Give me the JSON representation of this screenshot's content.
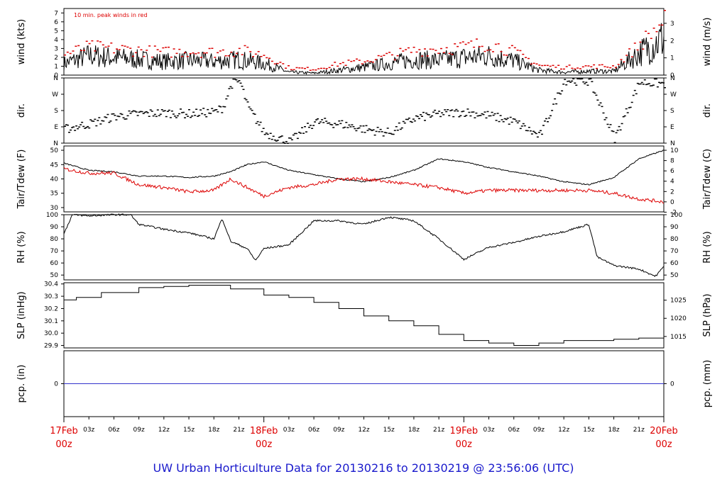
{
  "footer": {
    "title": "UW Urban Horticulture Data for 20130216  to  20130219 @ 23:56:06  (UTC)",
    "title_color": "#1a1acc"
  },
  "colors": {
    "series": "#000000",
    "red": "#dd0000",
    "precip": "#3333cc",
    "date": "#dd0000"
  },
  "chart_data": [
    {
      "type": "line",
      "id": "wind",
      "note": "10 min. peak winds in red",
      "ylabel_left": "wind (kts)",
      "ylabel_right": "wind (m/s)",
      "left_ticks": [
        0,
        1,
        2,
        3,
        4,
        5,
        6,
        7
      ],
      "right_ticks": [
        0,
        1,
        2,
        3
      ],
      "ylim": [
        0,
        7.5
      ],
      "right_scale": 0.5144,
      "x_hours": [
        0,
        3,
        6,
        9,
        12,
        15,
        18,
        21,
        24,
        27,
        30,
        33,
        36,
        39,
        42,
        45,
        48,
        51,
        54,
        57,
        60,
        63,
        66,
        69,
        72
      ],
      "series": [
        {
          "style": "line",
          "values": [
            1.2,
            2.0,
            1.8,
            1.6,
            1.4,
            1.5,
            1.4,
            1.6,
            1.2,
            0.3,
            0.2,
            0.5,
            0.8,
            1.2,
            1.6,
            1.5,
            1.8,
            2.0,
            1.5,
            0.5,
            0.3,
            0.4,
            0.4,
            2.2,
            3.8
          ]
        },
        {
          "style": "points",
          "values": [
            2.4,
            3.2,
            3.0,
            2.8,
            2.6,
            2.7,
            2.6,
            2.8,
            2.3,
            0.8,
            0.7,
            1.3,
            1.6,
            2.2,
            2.8,
            3.0,
            3.2,
            3.6,
            2.6,
            1.1,
            0.9,
            1.0,
            1.0,
            3.5,
            6.2
          ]
        }
      ]
    },
    {
      "type": "scatter",
      "id": "dir",
      "ylabel_left": "dir.",
      "ylabel_right": "dir.",
      "tick_labels": [
        "N",
        "E",
        "S",
        "W",
        "N"
      ],
      "ylim": [
        0,
        360
      ],
      "x_hours": [
        0,
        3,
        6,
        9,
        12,
        15,
        18,
        19,
        20,
        21,
        22,
        24,
        27,
        30,
        33,
        36,
        39,
        42,
        45,
        48,
        51,
        54,
        57,
        60,
        63,
        66,
        69,
        72
      ],
      "values": [
        80,
        110,
        150,
        165,
        170,
        165,
        175,
        200,
        330,
        345,
        200,
        60,
        10,
        120,
        110,
        80,
        60,
        140,
        165,
        175,
        155,
        120,
        40,
        350,
        345,
        30,
        340,
        330
      ]
    },
    {
      "type": "line",
      "id": "temp",
      "ylabel_left": "Tair/Tdew (F)",
      "ylabel_right": "Tair/Tdew (C)",
      "left_ticks": [
        30,
        35,
        40,
        45,
        50
      ],
      "right_ticks": [
        -2,
        0,
        2,
        4,
        6,
        8,
        10
      ],
      "ylim": [
        28.5,
        51.5
      ],
      "x_hours": [
        0,
        3,
        6,
        9,
        12,
        15,
        18,
        20,
        22,
        24,
        27,
        30,
        33,
        36,
        39,
        42,
        45,
        48,
        51,
        54,
        57,
        60,
        63,
        66,
        69,
        72
      ],
      "series": [
        {
          "name": "Tair",
          "color": "#000000",
          "values": [
            45.5,
            43.0,
            42.5,
            41.0,
            41.0,
            40.5,
            41.0,
            42.5,
            45.0,
            46.0,
            43.0,
            41.5,
            40.0,
            39.0,
            40.5,
            43.0,
            47.0,
            46.0,
            44.0,
            42.5,
            41.0,
            39.0,
            38.0,
            40.5,
            47.0,
            50.0
          ]
        },
        {
          "name": "Tdew",
          "color": "#dd0000",
          "values": [
            43.5,
            42.0,
            42.0,
            38.0,
            37.0,
            35.5,
            36.0,
            40.0,
            37.0,
            34.0,
            37.0,
            38.0,
            40.0,
            40.0,
            39.0,
            38.0,
            37.0,
            35.0,
            36.0,
            36.0,
            36.0,
            36.0,
            36.0,
            35.0,
            33.0,
            32.0
          ]
        }
      ]
    },
    {
      "type": "line",
      "id": "rh",
      "ylabel_left": "RH (%)",
      "ylabel_right": "RH (%)",
      "left_ticks": [
        50,
        60,
        70,
        80,
        90,
        100
      ],
      "right_ticks": [
        50,
        60,
        70,
        80,
        90,
        100
      ],
      "ylim": [
        46,
        100
      ],
      "x_hours": [
        0,
        1,
        3,
        6,
        8,
        9,
        12,
        15,
        18,
        19,
        20,
        22,
        23,
        24,
        27,
        30,
        33,
        36,
        39,
        42,
        45,
        48,
        51,
        54,
        57,
        60,
        63,
        64,
        66,
        69,
        71,
        72
      ],
      "series": [
        {
          "values": [
            84,
            100,
            99,
            100,
            100,
            92,
            88,
            85,
            80,
            97,
            78,
            72,
            62,
            72,
            75,
            95,
            95,
            92,
            98,
            95,
            80,
            63,
            73,
            77,
            82,
            86,
            92,
            65,
            58,
            55,
            49,
            57
          ]
        }
      ]
    },
    {
      "type": "line",
      "id": "slp",
      "ylabel_left": "SLP (inHg)",
      "ylabel_right": "SLP (hPa)",
      "left_ticks": [
        "29.9",
        "30.0",
        "30.1",
        "30.2",
        "30.3",
        "30.4"
      ],
      "right_ticks": [
        1015,
        1020,
        1025
      ],
      "ylim": [
        29.88,
        30.41
      ],
      "x_hours": [
        0,
        1.5,
        4.5,
        9,
        12,
        15,
        20,
        24,
        27,
        30,
        33,
        36,
        39,
        42,
        45,
        48,
        51,
        54,
        57,
        60,
        63,
        66,
        69,
        72
      ],
      "series": [
        {
          "values": [
            30.27,
            30.29,
            30.33,
            30.37,
            30.38,
            30.39,
            30.36,
            30.31,
            30.29,
            30.25,
            30.2,
            30.14,
            30.1,
            30.06,
            29.99,
            29.94,
            29.92,
            29.9,
            29.92,
            29.94,
            29.94,
            29.95,
            29.96,
            29.97
          ]
        }
      ]
    },
    {
      "type": "line",
      "id": "pcp",
      "ylabel_left": "pcp. (in)",
      "ylabel_right": "pcp. (mm)",
      "left_ticks": [
        0
      ],
      "right_ticks": [
        0
      ],
      "ylim": [
        -1,
        1
      ],
      "x_hours": [
        0,
        72
      ],
      "series": [
        {
          "values": [
            0,
            0
          ]
        }
      ]
    }
  ],
  "x_axis": {
    "minor_ticks": [
      "03z",
      "06z",
      "09z",
      "12z",
      "15z",
      "18z",
      "21z"
    ],
    "days": [
      {
        "date": "17Feb",
        "hour": "00z"
      },
      {
        "date": "18Feb",
        "hour": "00z"
      },
      {
        "date": "19Feb",
        "hour": "00z"
      },
      {
        "date": "20Feb",
        "hour": "00z"
      }
    ]
  }
}
